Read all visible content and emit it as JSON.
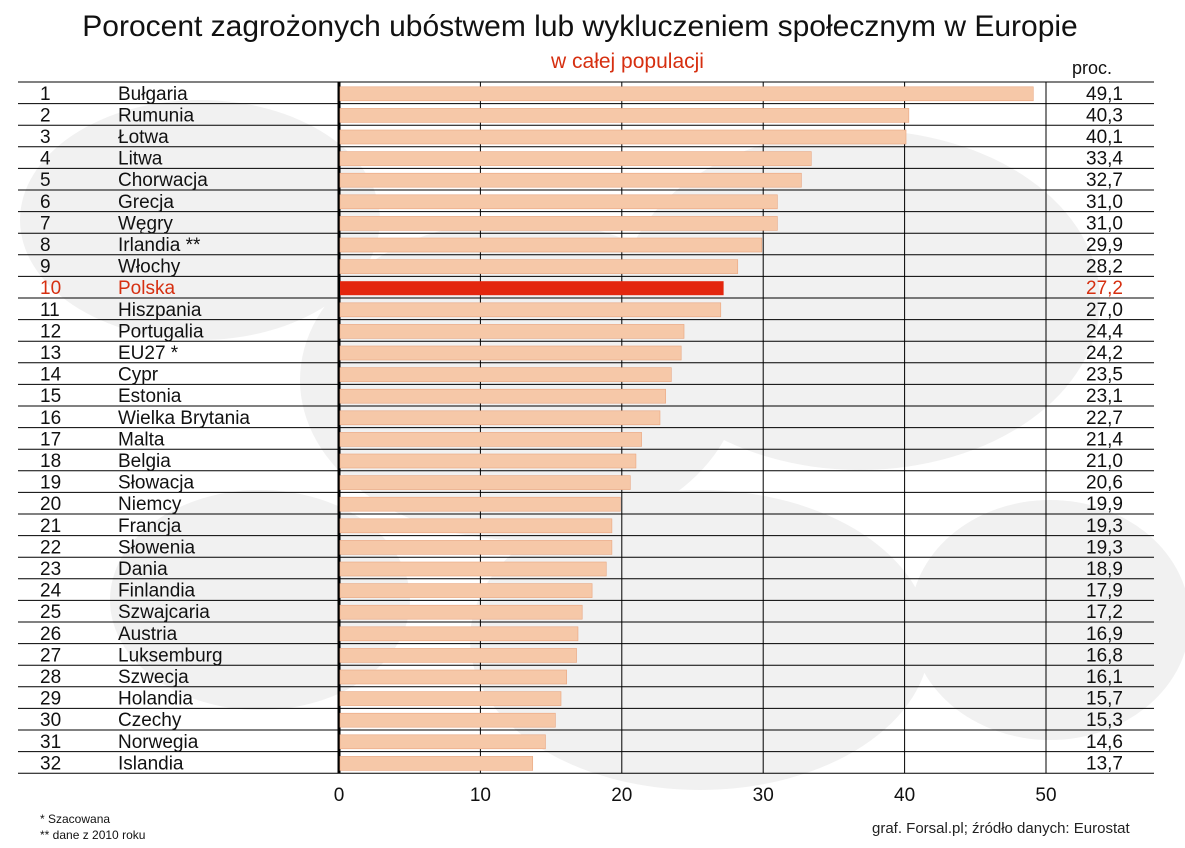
{
  "title": "Porocent zagrożonych ubóstwem lub wykluczeniem społecznym w Europie",
  "subtitle": "w całej populacji",
  "unit_label": "proc.",
  "footnotes": [
    "* Szacowana",
    "** dane z 2010 roku"
  ],
  "source": "graf. Forsal.pl; źródło danych: Eurostat",
  "colors": {
    "bar": "#f6c8a8",
    "bar_edge": "#e9a57f",
    "highlight_bar": "#e3260e",
    "highlight_text": "#d62f10",
    "grid": "#000000"
  },
  "chart_data": {
    "type": "bar",
    "orientation": "horizontal",
    "title": "Porocent zagrożonych ubóstwem lub wykluczeniem społecznym w Europie",
    "subtitle": "w całej populacji",
    "unit": "proc.",
    "xlim": [
      0,
      50
    ],
    "x_ticks": [
      "0",
      "10",
      "20",
      "30",
      "40",
      "50"
    ],
    "grid": true,
    "highlight": "Polska",
    "rows": [
      {
        "rank": "1",
        "country": "Bułgaria",
        "value": 49.1,
        "label": "49,1"
      },
      {
        "rank": "2",
        "country": "Rumunia",
        "value": 40.3,
        "label": "40,3"
      },
      {
        "rank": "3",
        "country": "Łotwa",
        "value": 40.1,
        "label": "40,1"
      },
      {
        "rank": "4",
        "country": "Litwa",
        "value": 33.4,
        "label": "33,4"
      },
      {
        "rank": "5",
        "country": "Chorwacja",
        "value": 32.7,
        "label": "32,7"
      },
      {
        "rank": "6",
        "country": "Grecja",
        "value": 31.0,
        "label": "31,0"
      },
      {
        "rank": "7",
        "country": "Węgry",
        "value": 31.0,
        "label": "31,0"
      },
      {
        "rank": "8",
        "country": "Irlandia **",
        "value": 29.9,
        "label": "29,9"
      },
      {
        "rank": "9",
        "country": "Włochy",
        "value": 28.2,
        "label": "28,2"
      },
      {
        "rank": "10",
        "country": "Polska",
        "value": 27.2,
        "label": "27,2"
      },
      {
        "rank": "11",
        "country": "Hiszpania",
        "value": 27.0,
        "label": "27,0"
      },
      {
        "rank": "12",
        "country": "Portugalia",
        "value": 24.4,
        "label": "24,4"
      },
      {
        "rank": "13",
        "country": "EU27 *",
        "value": 24.2,
        "label": "24,2"
      },
      {
        "rank": "14",
        "country": "Cypr",
        "value": 23.5,
        "label": "23,5"
      },
      {
        "rank": "15",
        "country": "Estonia",
        "value": 23.1,
        "label": "23,1"
      },
      {
        "rank": "16",
        "country": "Wielka Brytania",
        "value": 22.7,
        "label": "22,7"
      },
      {
        "rank": "17",
        "country": "Malta",
        "value": 21.4,
        "label": "21,4"
      },
      {
        "rank": "18",
        "country": "Belgia",
        "value": 21.0,
        "label": "21,0"
      },
      {
        "rank": "19",
        "country": "Słowacja",
        "value": 20.6,
        "label": "20,6"
      },
      {
        "rank": "20",
        "country": "Niemcy",
        "value": 19.9,
        "label": "19,9"
      },
      {
        "rank": "21",
        "country": "Francja",
        "value": 19.3,
        "label": "19,3"
      },
      {
        "rank": "22",
        "country": "Słowenia",
        "value": 19.3,
        "label": "19,3"
      },
      {
        "rank": "23",
        "country": "Dania",
        "value": 18.9,
        "label": "18,9"
      },
      {
        "rank": "24",
        "country": "Finlandia",
        "value": 17.9,
        "label": "17,9"
      },
      {
        "rank": "25",
        "country": "Szwajcaria",
        "value": 17.2,
        "label": "17,2"
      },
      {
        "rank": "26",
        "country": "Austria",
        "value": 16.9,
        "label": "16,9"
      },
      {
        "rank": "27",
        "country": "Luksemburg",
        "value": 16.8,
        "label": "16,8"
      },
      {
        "rank": "28",
        "country": "Szwecja",
        "value": 16.1,
        "label": "16,1"
      },
      {
        "rank": "29",
        "country": "Holandia",
        "value": 15.7,
        "label": "15,7"
      },
      {
        "rank": "30",
        "country": "Czechy",
        "value": 15.3,
        "label": "15,3"
      },
      {
        "rank": "31",
        "country": "Norwegia",
        "value": 14.6,
        "label": "14,6"
      },
      {
        "rank": "32",
        "country": "Islandia",
        "value": 13.7,
        "label": "13,7"
      }
    ]
  }
}
